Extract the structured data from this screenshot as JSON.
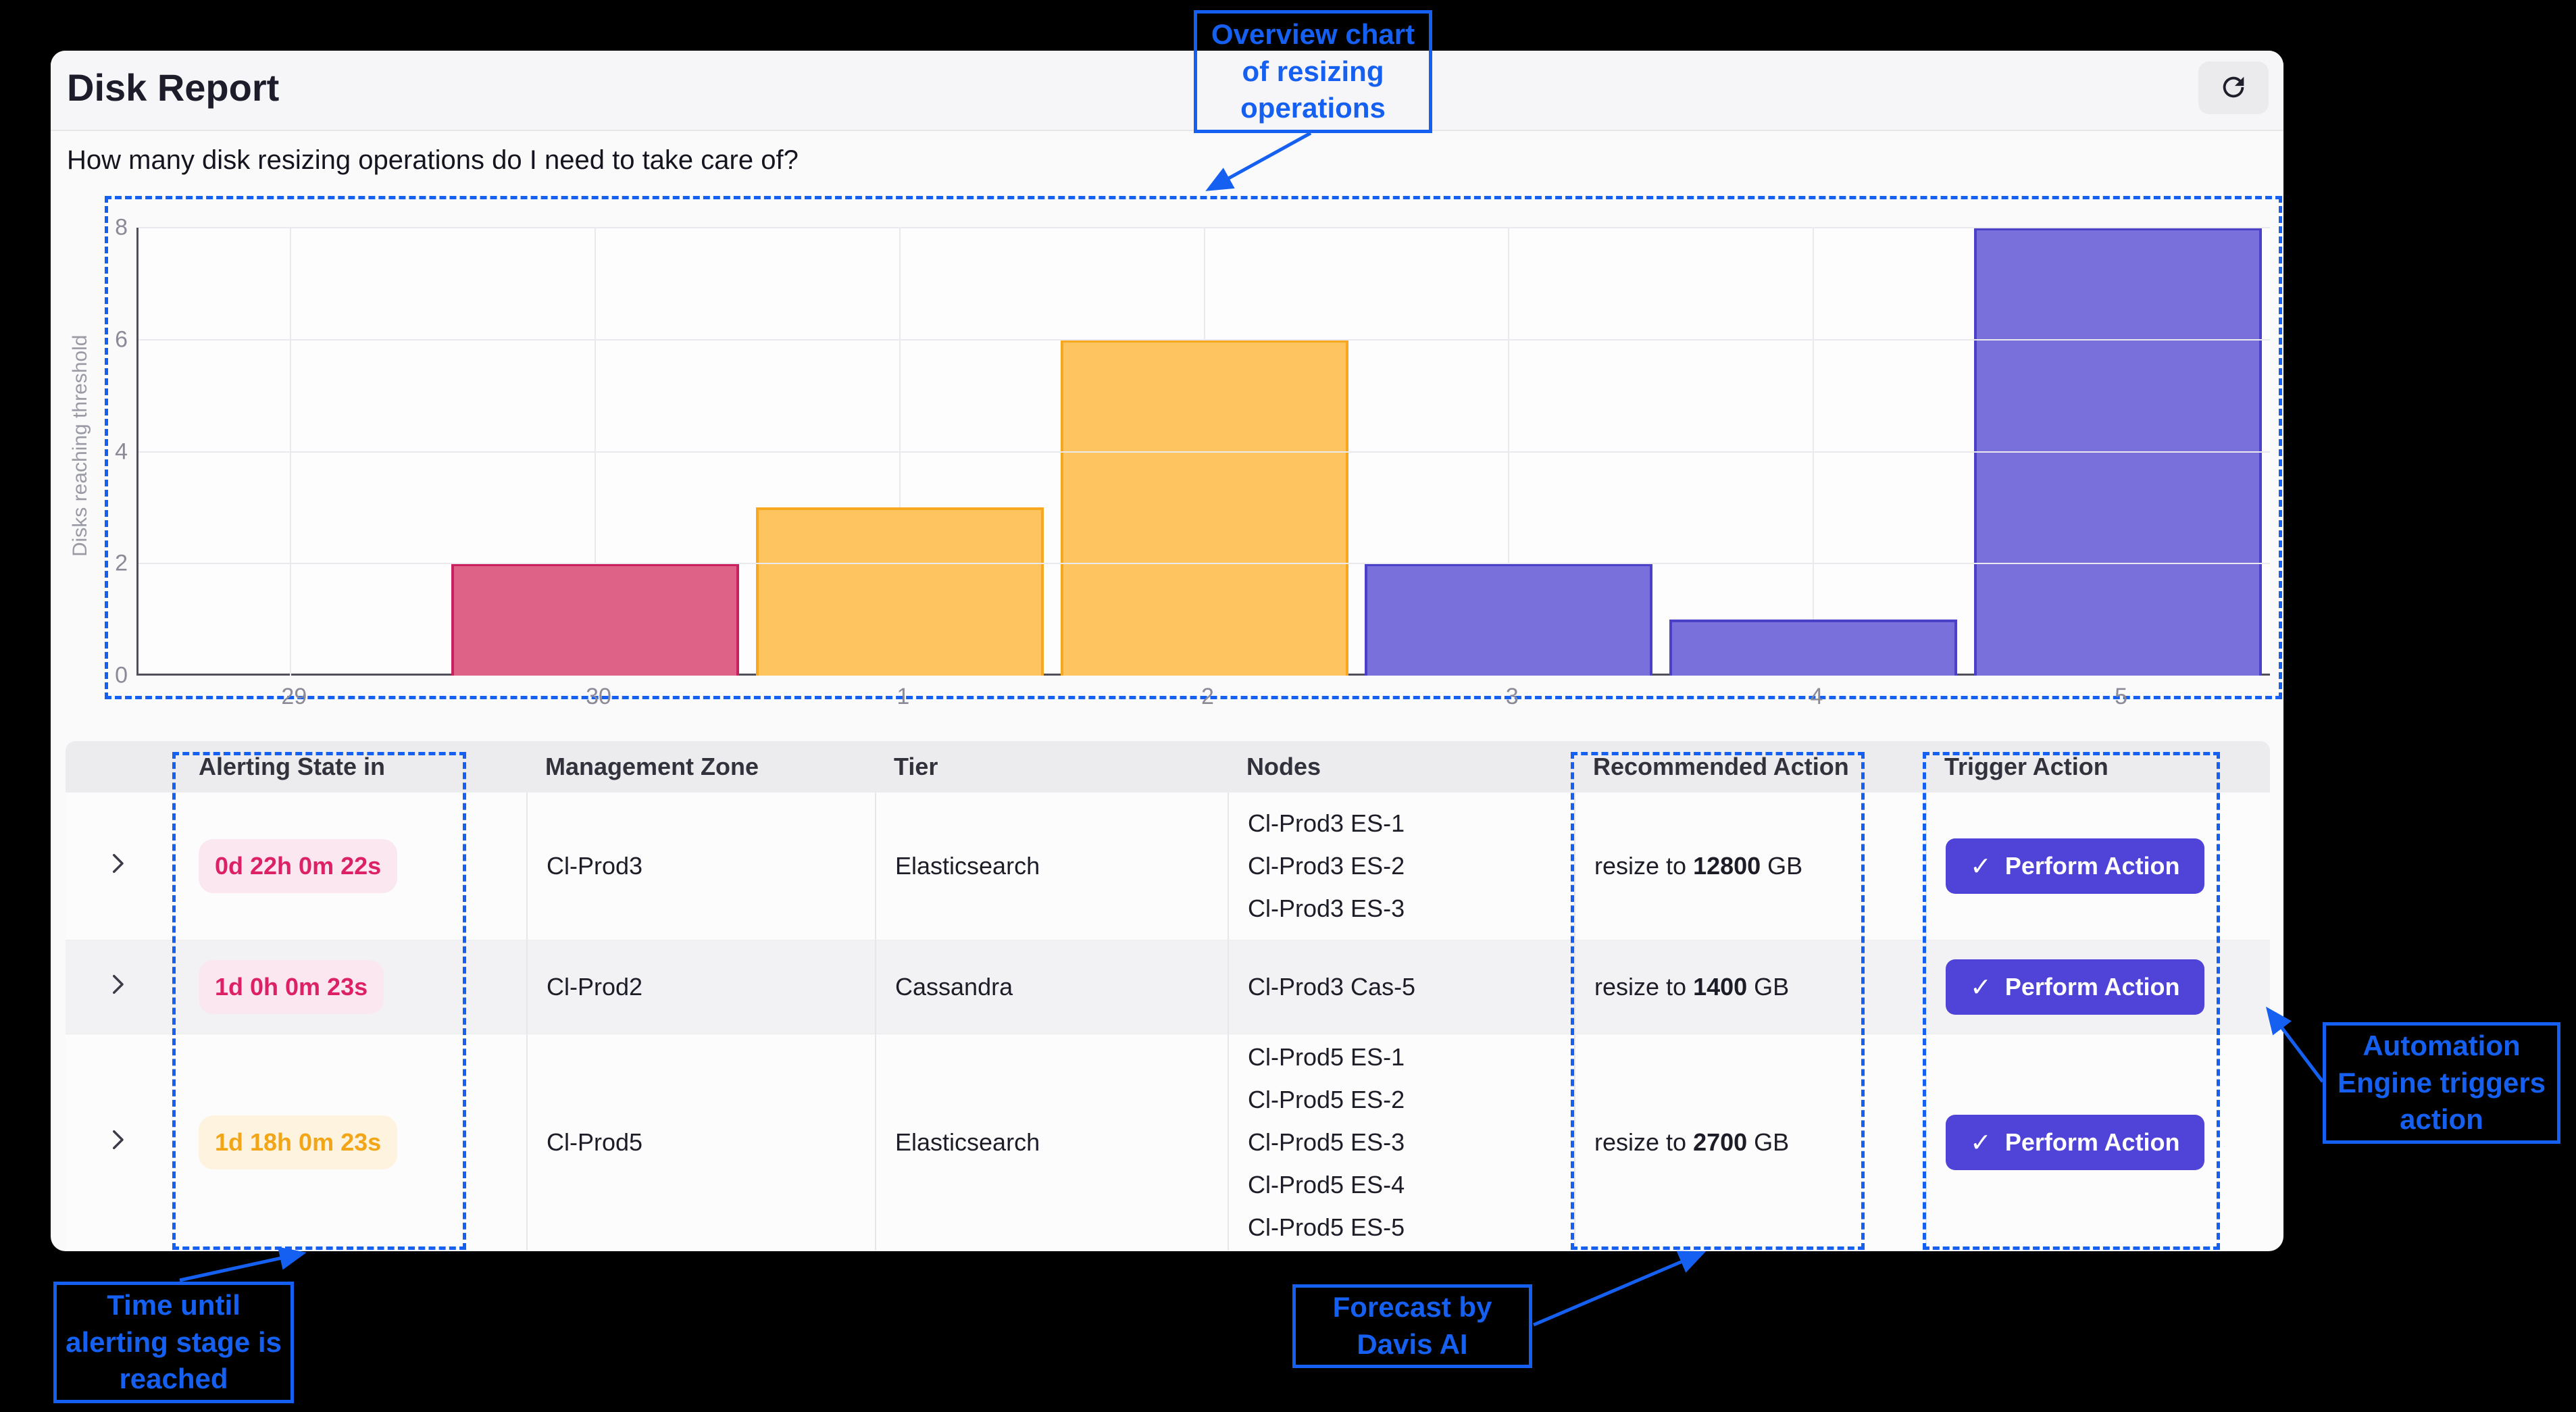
{
  "header": {
    "title": "Disk Report",
    "refresh_icon": "refresh"
  },
  "question": "How many disk resizing operations do I need to take care of?",
  "chart_data": {
    "type": "bar",
    "title": "",
    "categories": [
      "29",
      "30",
      "1",
      "2",
      "3",
      "4",
      "5"
    ],
    "values": [
      0,
      2,
      3,
      6,
      2,
      1,
      8
    ],
    "ylabel": "Disks reaching threshold",
    "xlabel": "",
    "ylim": [
      0,
      8
    ],
    "yticks": [
      0,
      2,
      4,
      6,
      8
    ],
    "grid": true,
    "legend": false,
    "bar_fill_colors": [
      "#de6287",
      "#de6287",
      "#fdc45f",
      "#fdc45f",
      "#7a70dc",
      "#7a70dc",
      "#7a70dc"
    ],
    "bar_border_colors": [
      "#c9205f",
      "#c9205f",
      "#f7a81f",
      "#f7a81f",
      "#4b41c8",
      "#4b41c8",
      "#4b41c8"
    ]
  },
  "table": {
    "columns": [
      "Alerting State in",
      "Management Zone",
      "Tier",
      "Nodes",
      "Recommended Action",
      "Trigger Action"
    ],
    "rows": [
      {
        "alerting_state": "0d 22h 0m 22s",
        "severity": "critical",
        "zone": "Cl-Prod3",
        "tier": "Elasticsearch",
        "nodes": [
          "Cl-Prod3 ES-1",
          "Cl-Prod3 ES-2",
          "Cl-Prod3 ES-3"
        ],
        "action": {
          "prefix": "resize to",
          "value": "12800",
          "unit": "GB"
        },
        "button": "Perform Action"
      },
      {
        "alerting_state": "1d 0h 0m 23s",
        "severity": "critical",
        "zone": "Cl-Prod2",
        "tier": "Cassandra",
        "nodes": [
          "Cl-Prod3 Cas-5"
        ],
        "action": {
          "prefix": "resize to",
          "value": "1400",
          "unit": "GB"
        },
        "button": "Perform Action"
      },
      {
        "alerting_state": "1d 18h 0m 23s",
        "severity": "warning",
        "zone": "Cl-Prod5",
        "tier": "Elasticsearch",
        "nodes": [
          "Cl-Prod5 ES-1",
          "Cl-Prod5 ES-2",
          "Cl-Prod5 ES-3",
          "Cl-Prod5 ES-4",
          "Cl-Prod5 ES-5"
        ],
        "action": {
          "prefix": "resize to",
          "value": "2700",
          "unit": "GB"
        },
        "button": "Perform Action"
      }
    ]
  },
  "icons": {
    "check": "✓"
  },
  "annotations": {
    "overview": "Overview chart\nof resizing\noperations",
    "automation": "Automation\nEngine triggers\naction",
    "time": "Time until\nalerting stage is\nreached",
    "forecast": "Forecast by\nDavis AI"
  },
  "colors": {
    "annotation_blue": "#1560f0",
    "critical_pink": "#de6287",
    "warning_amber": "#fdc45f",
    "normal_purple": "#7a70dc",
    "button_indigo": "#4f43d8"
  }
}
